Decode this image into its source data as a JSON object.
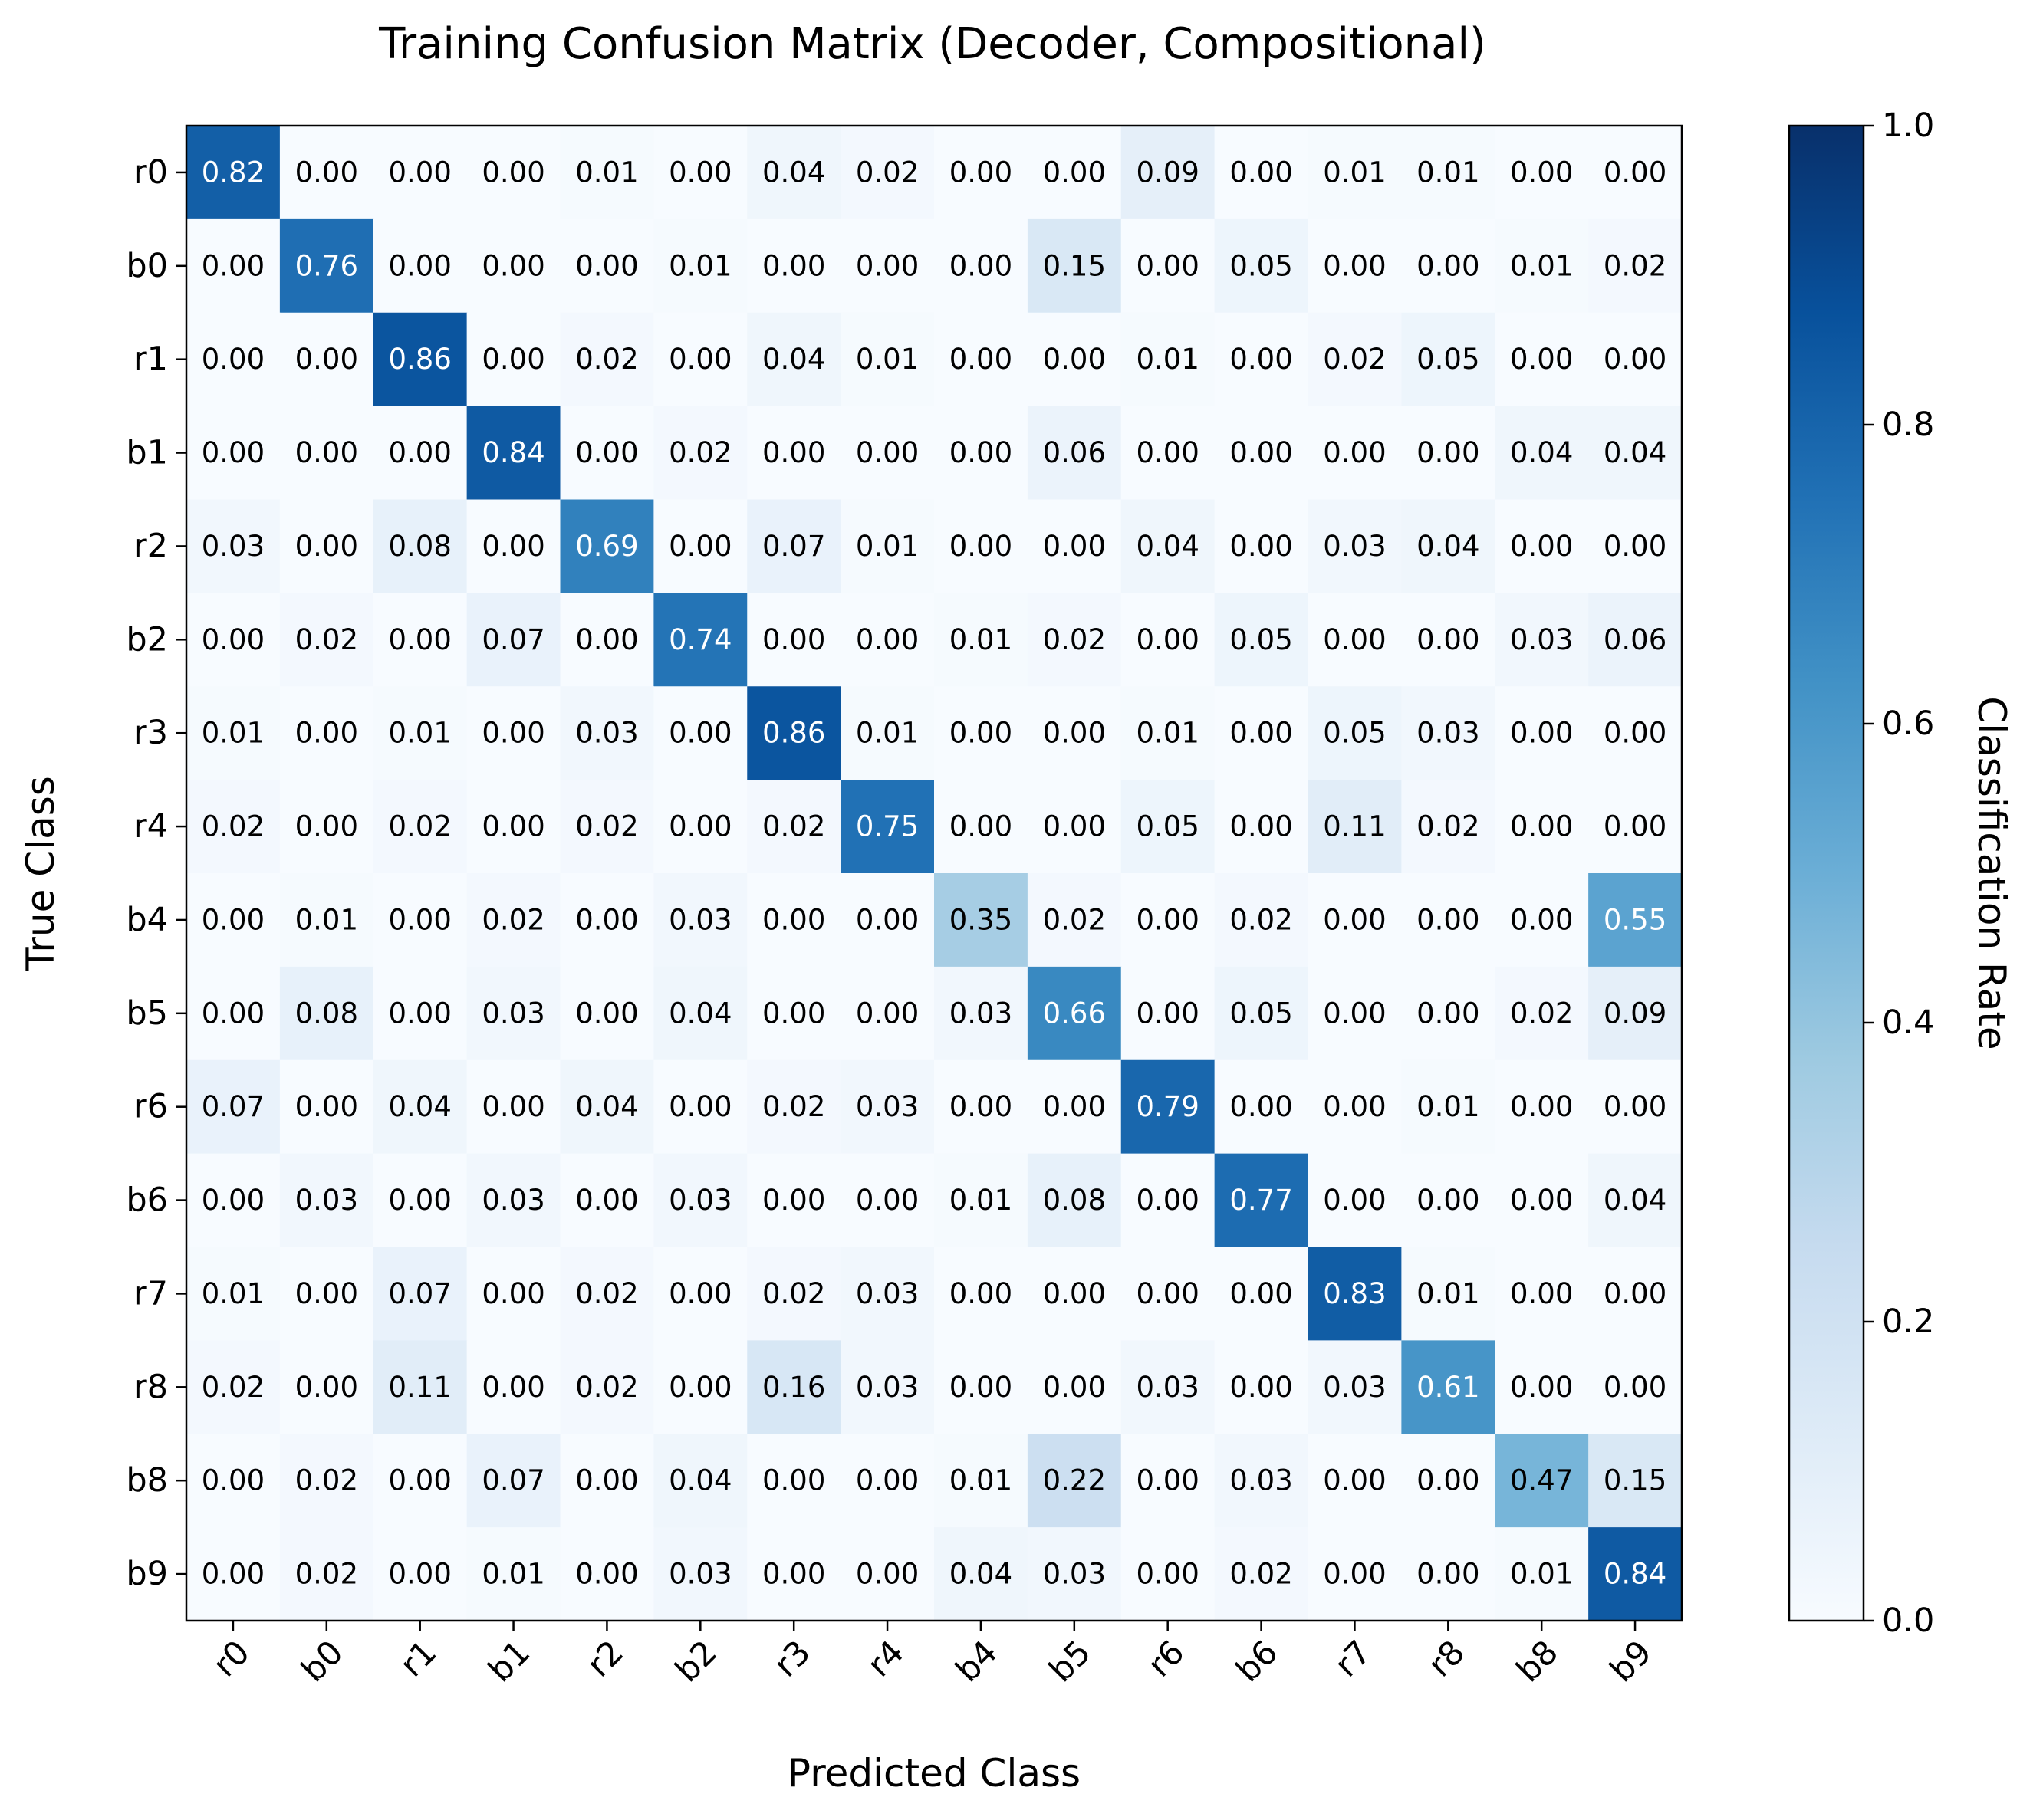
{
  "chart_data": {
    "type": "heatmap",
    "title": "Training Confusion Matrix (Decoder, Compositional)",
    "xlabel": "Predicted Class",
    "ylabel": "True Class",
    "x_categories": [
      "r0",
      "b0",
      "r1",
      "b1",
      "r2",
      "b2",
      "r3",
      "r4",
      "b4",
      "b5",
      "r6",
      "b6",
      "r7",
      "r8",
      "b8",
      "b9"
    ],
    "y_categories": [
      "r0",
      "b0",
      "r1",
      "b1",
      "r2",
      "b2",
      "r3",
      "r4",
      "b4",
      "b5",
      "r6",
      "b6",
      "r7",
      "r8",
      "b8",
      "b9"
    ],
    "values": [
      [
        0.82,
        0.0,
        0.0,
        0.0,
        0.01,
        0.0,
        0.04,
        0.02,
        0.0,
        0.0,
        0.09,
        0.0,
        0.01,
        0.01,
        0.0,
        0.0
      ],
      [
        0.0,
        0.76,
        0.0,
        0.0,
        0.0,
        0.01,
        0.0,
        0.0,
        0.0,
        0.15,
        0.0,
        0.05,
        0.0,
        0.0,
        0.01,
        0.02
      ],
      [
        0.0,
        0.0,
        0.86,
        0.0,
        0.02,
        0.0,
        0.04,
        0.01,
        0.0,
        0.0,
        0.01,
        0.0,
        0.02,
        0.05,
        0.0,
        0.0
      ],
      [
        0.0,
        0.0,
        0.0,
        0.84,
        0.0,
        0.02,
        0.0,
        0.0,
        0.0,
        0.06,
        0.0,
        0.0,
        0.0,
        0.0,
        0.04,
        0.04
      ],
      [
        0.03,
        0.0,
        0.08,
        0.0,
        0.69,
        0.0,
        0.07,
        0.01,
        0.0,
        0.0,
        0.04,
        0.0,
        0.03,
        0.04,
        0.0,
        0.0
      ],
      [
        0.0,
        0.02,
        0.0,
        0.07,
        0.0,
        0.74,
        0.0,
        0.0,
        0.01,
        0.02,
        0.0,
        0.05,
        0.0,
        0.0,
        0.03,
        0.06
      ],
      [
        0.01,
        0.0,
        0.01,
        0.0,
        0.03,
        0.0,
        0.86,
        0.01,
        0.0,
        0.0,
        0.01,
        0.0,
        0.05,
        0.03,
        0.0,
        0.0
      ],
      [
        0.02,
        0.0,
        0.02,
        0.0,
        0.02,
        0.0,
        0.02,
        0.75,
        0.0,
        0.0,
        0.05,
        0.0,
        0.11,
        0.02,
        0.0,
        0.0
      ],
      [
        0.0,
        0.01,
        0.0,
        0.02,
        0.0,
        0.03,
        0.0,
        0.0,
        0.35,
        0.02,
        0.0,
        0.02,
        0.0,
        0.0,
        0.0,
        0.55
      ],
      [
        0.0,
        0.08,
        0.0,
        0.03,
        0.0,
        0.04,
        0.0,
        0.0,
        0.03,
        0.66,
        0.0,
        0.05,
        0.0,
        0.0,
        0.02,
        0.09
      ],
      [
        0.07,
        0.0,
        0.04,
        0.0,
        0.04,
        0.0,
        0.02,
        0.03,
        0.0,
        0.0,
        0.79,
        0.0,
        0.0,
        0.01,
        0.0,
        0.0
      ],
      [
        0.0,
        0.03,
        0.0,
        0.03,
        0.0,
        0.03,
        0.0,
        0.0,
        0.01,
        0.08,
        0.0,
        0.77,
        0.0,
        0.0,
        0.0,
        0.04
      ],
      [
        0.01,
        0.0,
        0.07,
        0.0,
        0.02,
        0.0,
        0.02,
        0.03,
        0.0,
        0.0,
        0.0,
        0.0,
        0.83,
        0.01,
        0.0,
        0.0
      ],
      [
        0.02,
        0.0,
        0.11,
        0.0,
        0.02,
        0.0,
        0.16,
        0.03,
        0.0,
        0.0,
        0.03,
        0.0,
        0.03,
        0.61,
        0.0,
        0.0
      ],
      [
        0.0,
        0.02,
        0.0,
        0.07,
        0.0,
        0.04,
        0.0,
        0.0,
        0.01,
        0.22,
        0.0,
        0.03,
        0.0,
        0.0,
        0.47,
        0.15
      ],
      [
        0.0,
        0.02,
        0.0,
        0.01,
        0.0,
        0.03,
        0.0,
        0.0,
        0.04,
        0.03,
        0.0,
        0.02,
        0.0,
        0.0,
        0.01,
        0.84
      ]
    ],
    "value_range": [
      0.0,
      1.0
    ],
    "colormap": "Blues",
    "colorbar": {
      "label": "Classification Rate",
      "ticks": [
        0.0,
        0.2,
        0.4,
        0.6,
        0.8,
        1.0
      ],
      "tick_labels": [
        "0.0",
        "0.2",
        "0.4",
        "0.6",
        "0.8",
        "1.0"
      ]
    },
    "grid": false
  }
}
